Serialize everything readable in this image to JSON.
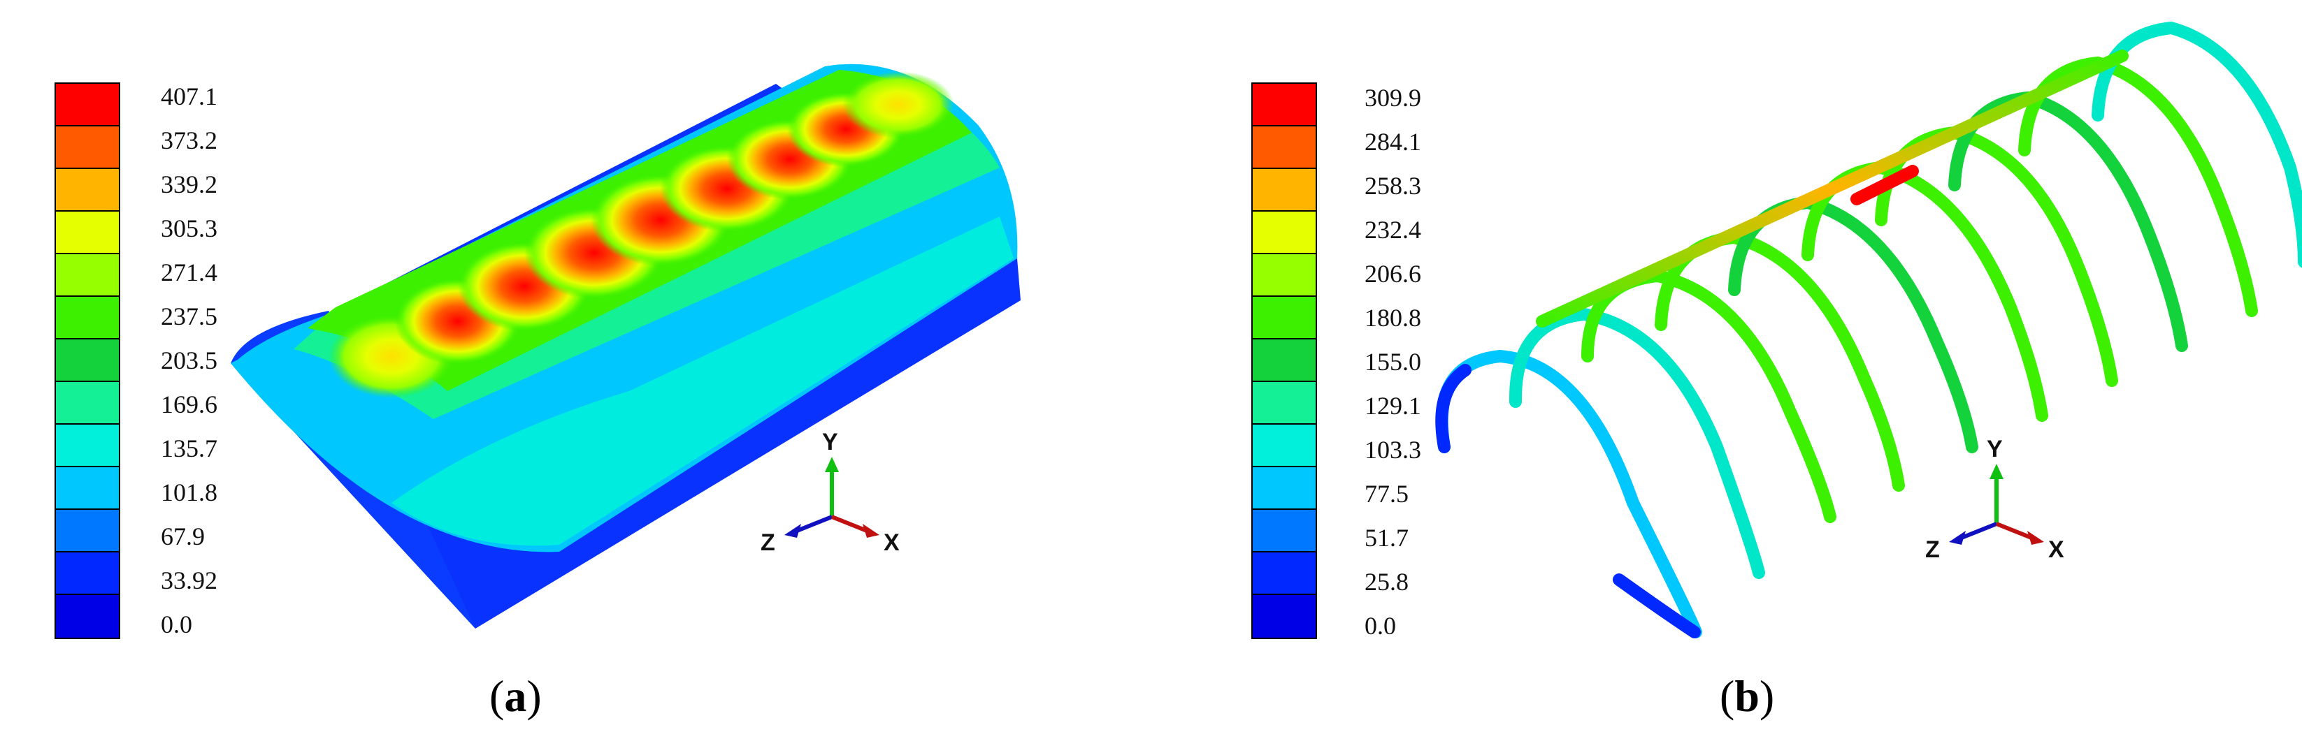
{
  "panel_a": {
    "caption_open": "(",
    "caption_letter": "a",
    "caption_close": ")",
    "legend_values": [
      "407.1",
      "373.2",
      "339.2",
      "305.3",
      "271.4",
      "237.5",
      "203.5",
      "169.6",
      "135.7",
      "101.8",
      "67.9",
      "33.92",
      "0.0"
    ],
    "axis": {
      "y": "Y",
      "z": "Z",
      "x": "X"
    }
  },
  "panel_b": {
    "caption_open": "(",
    "caption_letter": "b",
    "caption_close": ")",
    "legend_values": [
      "309.9",
      "284.1",
      "258.3",
      "232.4",
      "206.6",
      "180.8",
      "155.0",
      "129.1",
      "103.3",
      "77.5",
      "51.7",
      "25.8",
      "0.0"
    ],
    "axis": {
      "y": "Y",
      "z": "Z",
      "x": "X"
    }
  },
  "legend_colors": [
    "#ff0000",
    "#ff5a00",
    "#ffb400",
    "#e6ff00",
    "#96ff00",
    "#3cf000",
    "#14d23c",
    "#14f096",
    "#00f0dc",
    "#00c8ff",
    "#0078ff",
    "#0028ff",
    "#0000e6"
  ]
}
